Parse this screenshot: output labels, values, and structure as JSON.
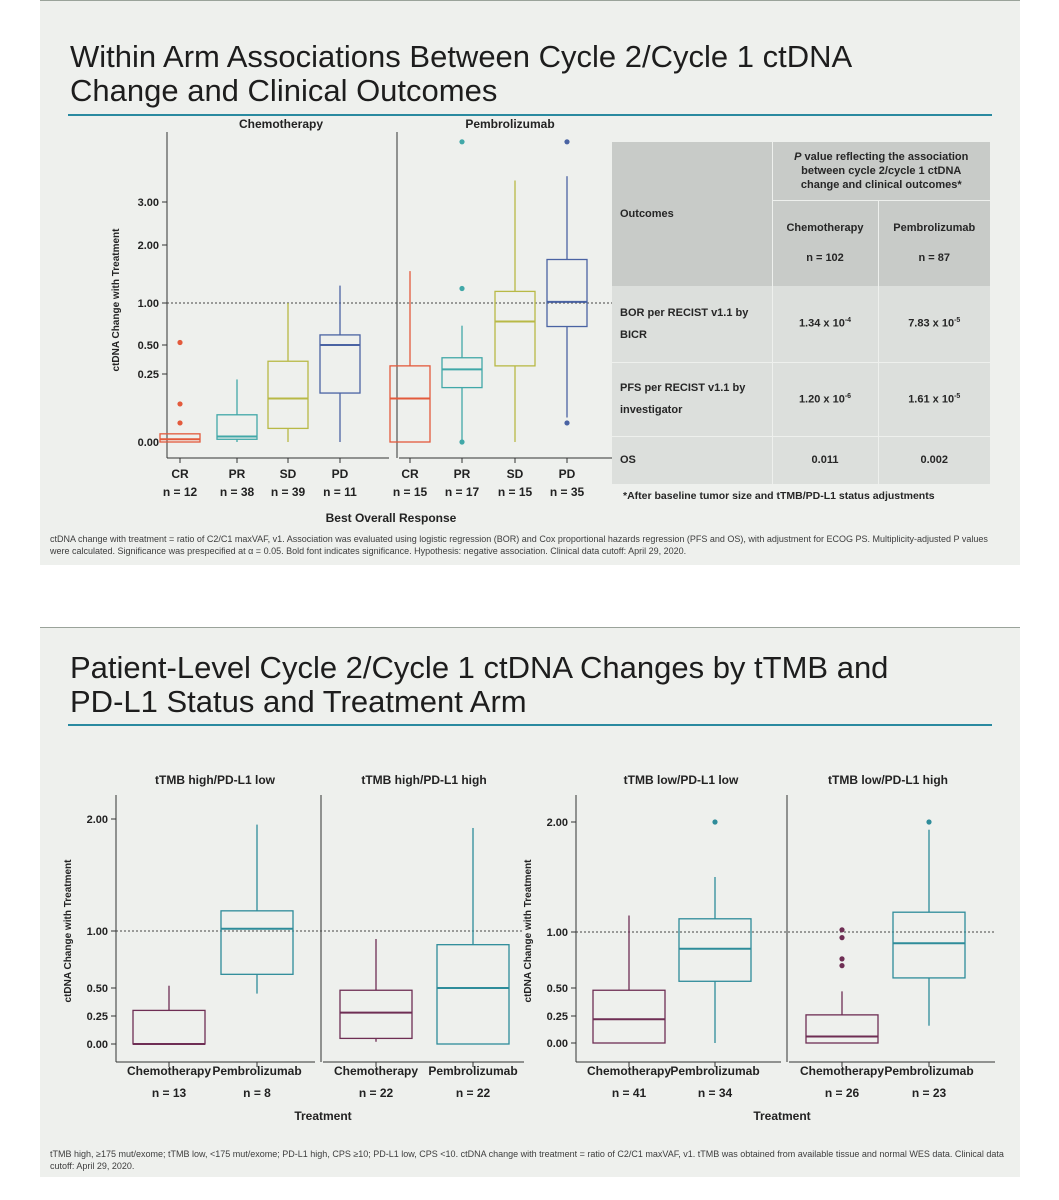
{
  "slide1": {
    "title_line1": "Within Arm Associations Between Cycle 2/Cycle 1 ctDNA",
    "title_line2": "Change and Clinical Outcomes",
    "chart_data": {
      "type": "box",
      "ylabel": "ctDNA Change with Treatment",
      "xlabel": "Best Overall Response",
      "yticks": [
        "0.00",
        "0.25",
        "0.50",
        "1.00",
        "2.00",
        "3.00"
      ],
      "reference_line": 1.0,
      "panels": [
        {
          "name": "Chemotherapy",
          "groups": [
            {
              "label": "CR",
              "n": "n = 12",
              "color": "#e35a3c",
              "whisker_low": 0.0,
              "q1": 0.0,
              "median": 0.01,
              "q3": 0.03,
              "whisker_high": 0.03,
              "outliers": [
                0.07,
                0.14,
                0.53
              ]
            },
            {
              "label": "PR",
              "n": "n = 38",
              "color": "#41a8a8",
              "whisker_low": 0.0,
              "q1": 0.01,
              "median": 0.02,
              "q3": 0.1,
              "whisker_high": 0.23,
              "outliers": []
            },
            {
              "label": "SD",
              "n": "n = 39",
              "color": "#b8b946",
              "whisker_low": 0.0,
              "q1": 0.05,
              "median": 0.16,
              "q3": 0.36,
              "whisker_high": 1.0,
              "outliers": []
            },
            {
              "label": "PD",
              "n": "n = 11",
              "color": "#4a63a3",
              "whisker_low": 0.0,
              "q1": 0.18,
              "median": 0.5,
              "q3": 0.62,
              "whisker_high": 1.3,
              "outliers": []
            }
          ]
        },
        {
          "name": "Pembrolizumab",
          "groups": [
            {
              "label": "CR",
              "n": "n = 15",
              "color": "#e35a3c",
              "whisker_low": 0.0,
              "q1": 0.0,
              "median": 0.16,
              "q3": 0.32,
              "whisker_high": 1.55,
              "outliers": []
            },
            {
              "label": "PR",
              "n": "n = 17",
              "color": "#41a8a8",
              "whisker_low": 0.0,
              "q1": 0.2,
              "median": 0.29,
              "q3": 0.39,
              "whisker_high": 0.73,
              "outliers": [
                0.0,
                1.25,
                4.4
              ]
            },
            {
              "label": "SD",
              "n": "n = 15",
              "color": "#b8b946",
              "whisker_low": 0.0,
              "q1": 0.32,
              "median": 0.78,
              "q3": 1.2,
              "whisker_high": 3.5,
              "outliers": []
            },
            {
              "label": "PD",
              "n": "n = 35",
              "color": "#4a63a3",
              "whisker_low": 0.09,
              "q1": 0.72,
              "median": 1.02,
              "q3": 1.75,
              "whisker_high": 3.6,
              "outliers": [
                0.07,
                4.4
              ]
            }
          ]
        }
      ]
    },
    "table": {
      "header_pvalue": "P value reflecting the association between cycle 2/cycle 1 ctDNA change and clinical outcomes*",
      "header_p_letter": "P",
      "header_p_rest": " value reflecting the association between cycle 2/cycle 1 ctDNA change and clinical outcomes*",
      "col_outcomes": "Outcomes",
      "col_chemo": "Chemotherapy",
      "col_pembro": "Pembrolizumab",
      "n_chemo": "n = 102",
      "n_pembro": "n = 87",
      "rows": [
        {
          "outcome": "BOR per RECIST v1.1 by BICR",
          "chemo_base": "1.34 x 10",
          "chemo_exp": "-4",
          "pembro_base": "7.83 x 10",
          "pembro_exp": "-5"
        },
        {
          "outcome": "PFS per RECIST v1.1 by investigator",
          "chemo_base": "1.20 x 10",
          "chemo_exp": "-6",
          "pembro_base": "1.61 x 10",
          "pembro_exp": "-5"
        },
        {
          "outcome": "OS",
          "chemo_base": "0.011",
          "chemo_exp": "",
          "pembro_base": "0.002",
          "pembro_exp": ""
        }
      ],
      "footnote": "*After baseline tumor size and tTMB/PD-L1 status adjustments"
    },
    "footnote": "ctDNA change with treatment = ratio of C2/C1 maxVAF, v1. Association was evaluated using logistic regression (BOR) and Cox proportional hazards regression (PFS and OS), with adjustment for ECOG PS. Multiplicity-adjusted P values were calculated. Significance was prespecified at α = 0.05. Bold font indicates significance. Hypothesis: negative association. Clinical data cutoff: April 29, 2020."
  },
  "slide2": {
    "title_line1": "Patient-Level Cycle 2/Cycle 1 ctDNA Changes by tTMB and",
    "title_line2": "PD-L1 Status and Treatment Arm",
    "chart_data": {
      "type": "box",
      "ylabel": "ctDNA Change with Treatment",
      "xlabel": "Treatment",
      "yticks": [
        "0.00",
        "0.25",
        "0.50",
        "1.00",
        "2.00"
      ],
      "reference_line": 1.0,
      "panels": [
        {
          "name": "tTMB high/PD-L1 low",
          "groups": [
            {
              "label": "Chemotherapy",
              "n": "n = 13",
              "color": "#6e2e54",
              "whisker_low": 0.0,
              "q1": 0.0,
              "median": 0.0,
              "q3": 0.3,
              "whisker_high": 0.52,
              "outliers": []
            },
            {
              "label": "Pembrolizumab",
              "n": "n = 8",
              "color": "#2e8c9a",
              "whisker_low": 0.45,
              "q1": 0.62,
              "median": 1.02,
              "q3": 1.18,
              "whisker_high": 1.95,
              "outliers": []
            }
          ]
        },
        {
          "name": "tTMB high/PD-L1 high",
          "groups": [
            {
              "label": "Chemotherapy",
              "n": "n = 22",
              "color": "#6e2e54",
              "whisker_low": 0.02,
              "q1": 0.05,
              "median": 0.28,
              "q3": 0.48,
              "whisker_high": 0.93,
              "outliers": []
            },
            {
              "label": "Pembrolizumab",
              "n": "n = 22",
              "color": "#2e8c9a",
              "whisker_low": 0.0,
              "q1": 0.0,
              "median": 0.5,
              "q3": 0.88,
              "whisker_high": 1.92,
              "outliers": []
            }
          ]
        },
        {
          "name": "tTMB low/PD-L1 low",
          "groups": [
            {
              "label": "Chemotherapy",
              "n": "n = 41",
              "color": "#6e2e54",
              "whisker_low": 0.0,
              "q1": 0.0,
              "median": 0.22,
              "q3": 0.48,
              "whisker_high": 1.15,
              "outliers": []
            },
            {
              "label": "Pembrolizumab",
              "n": "n = 34",
              "color": "#2e8c9a",
              "whisker_low": 0.0,
              "q1": 0.56,
              "median": 0.85,
              "q3": 1.12,
              "whisker_high": 1.5,
              "outliers": [
                2.0
              ]
            }
          ]
        },
        {
          "name": "tTMB low/PD-L1 high",
          "groups": [
            {
              "label": "Chemotherapy",
              "n": "n = 26",
              "color": "#6e2e54",
              "whisker_low": 0.0,
              "q1": 0.0,
              "median": 0.06,
              "q3": 0.26,
              "whisker_high": 0.47,
              "outliers": [
                0.7,
                0.76,
                0.95,
                1.02
              ]
            },
            {
              "label": "Pembrolizumab",
              "n": "n = 23",
              "color": "#2e8c9a",
              "whisker_low": 0.16,
              "q1": 0.59,
              "median": 0.9,
              "q3": 1.18,
              "whisker_high": 1.93,
              "outliers": [
                2.0
              ]
            }
          ]
        }
      ]
    },
    "footnote": "tTMB high, ≥175 mut/exome; tTMB low, <175 mut/exome; PD-L1 high, CPS ≥10; PD-L1 low, CPS <10. ctDNA change with treatment = ratio of C2/C1 maxVAF, v1. tTMB was obtained from available tissue and normal WES data. Clinical data cutoff: April 29, 2020."
  }
}
